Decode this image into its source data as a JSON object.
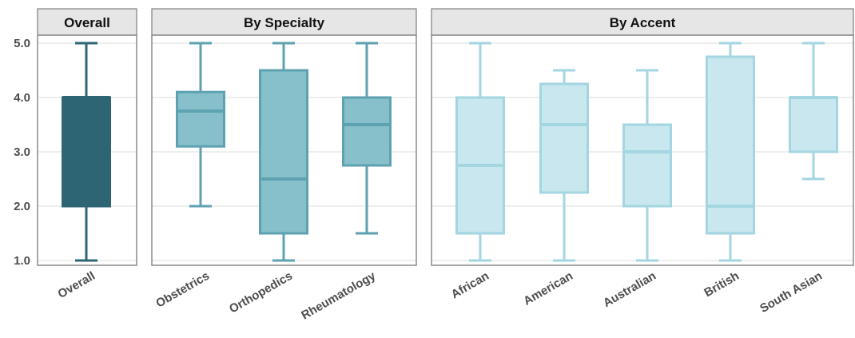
{
  "chart_data": {
    "type": "boxplot",
    "y_ticks": [
      "1.0",
      "2.0",
      "3.0",
      "4.0",
      "5.0"
    ],
    "ylim": [
      1,
      5
    ],
    "grid": true,
    "facets": [
      {
        "title": "Overall",
        "color": "#2e6575",
        "edge": "#2e6575",
        "boxes": [
          {
            "label": "Overall",
            "min": 1.0,
            "q1": 2.0,
            "median": 4.0,
            "q3": 4.0,
            "max": 5.0
          }
        ]
      },
      {
        "title": "By Specialty",
        "color": "#87c0cb",
        "edge": "#5ea2b1",
        "boxes": [
          {
            "label": "Obstetrics",
            "min": 2.0,
            "q1": 3.1,
            "median": 3.75,
            "q3": 4.1,
            "max": 5.0
          },
          {
            "label": "Orthopedics",
            "min": 1.0,
            "q1": 1.5,
            "median": 2.5,
            "q3": 4.5,
            "max": 5.0
          },
          {
            "label": "Rheumatology",
            "min": 1.5,
            "q1": 2.75,
            "median": 3.5,
            "q3": 4.0,
            "max": 5.0
          }
        ]
      },
      {
        "title": "By Accent",
        "color": "#c8e7ef",
        "edge": "#a3d6e1",
        "boxes": [
          {
            "label": "African",
            "min": 1.0,
            "q1": 1.5,
            "median": 2.75,
            "q3": 4.0,
            "max": 5.0
          },
          {
            "label": "American",
            "min": 1.0,
            "q1": 2.25,
            "median": 3.5,
            "q3": 4.25,
            "max": 4.5
          },
          {
            "label": "Australian",
            "min": 1.0,
            "q1": 2.0,
            "median": 3.0,
            "q3": 3.5,
            "max": 4.5
          },
          {
            "label": "British",
            "min": 1.0,
            "q1": 1.5,
            "median": 2.0,
            "q3": 4.75,
            "max": 5.0
          },
          {
            "label": "South Asian",
            "min": 2.5,
            "q1": 3.0,
            "median": 4.0,
            "q3": 4.0,
            "max": 5.0
          }
        ]
      }
    ]
  }
}
